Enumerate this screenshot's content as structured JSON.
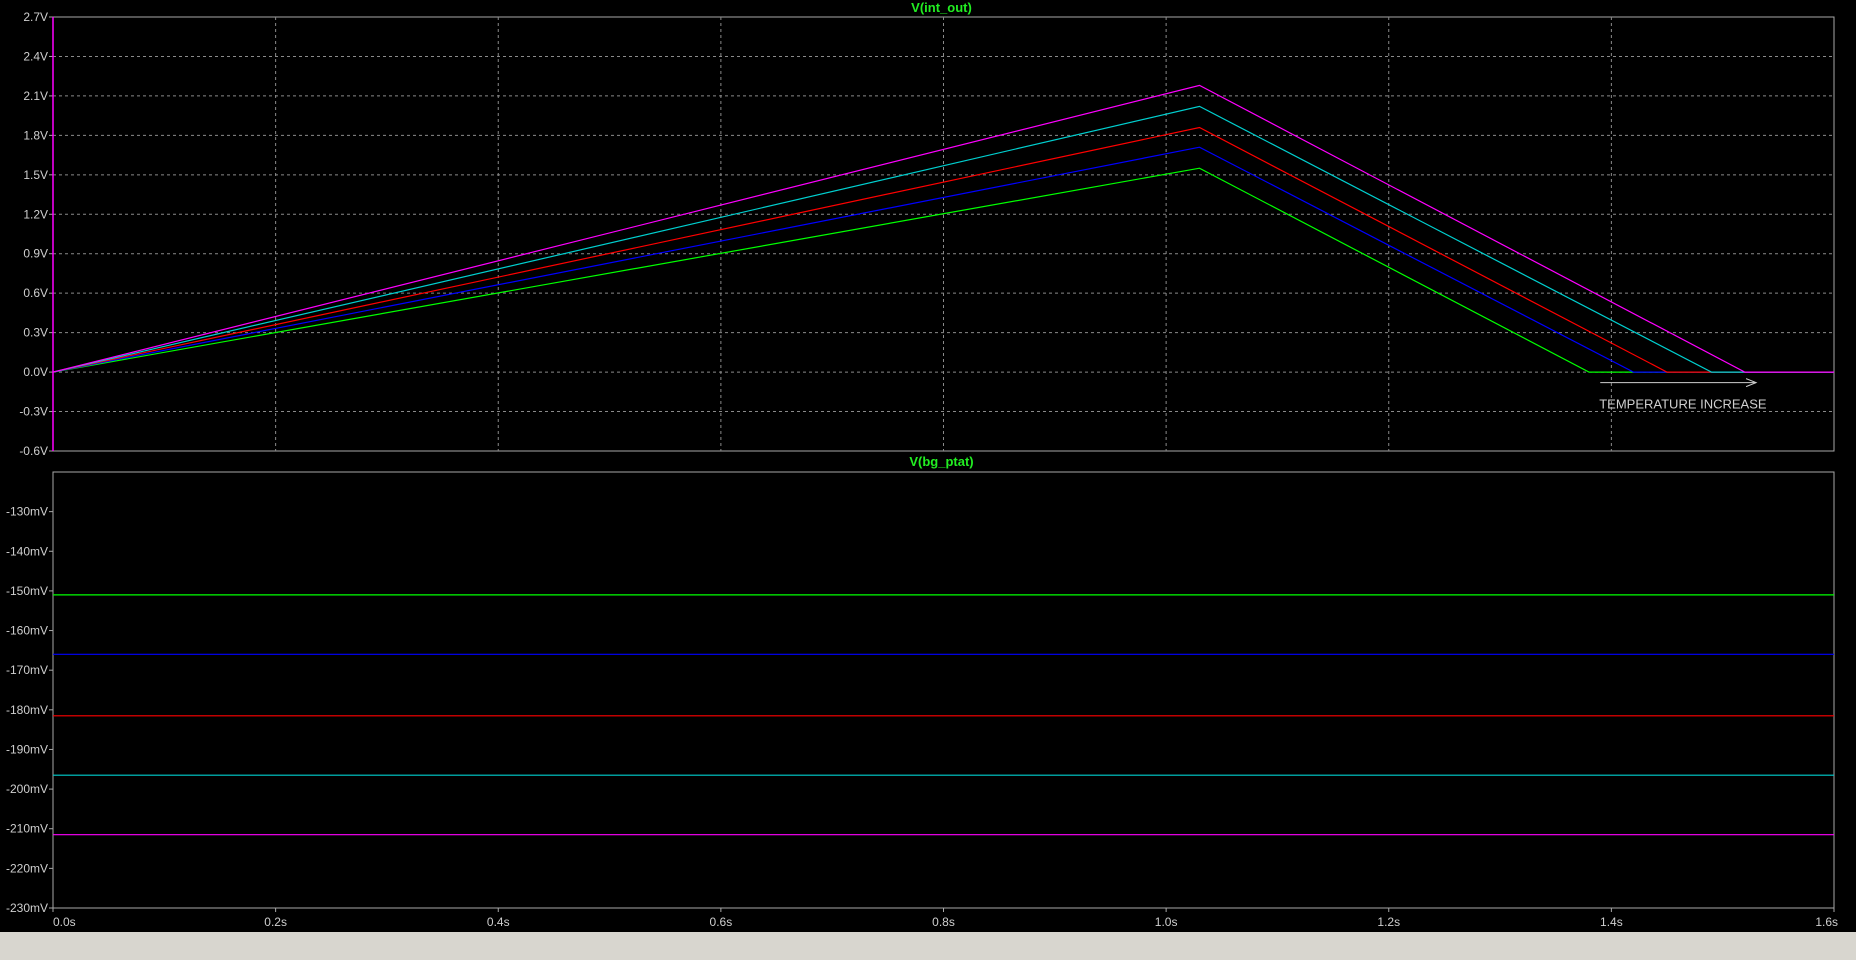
{
  "chart_data": [
    {
      "type": "line",
      "title": "V(int_out)",
      "xlabel": "",
      "ylabel": "",
      "xlim": [
        0,
        1.6
      ],
      "ylim": [
        -0.6,
        2.7
      ],
      "x_ticks": [
        "0.0s",
        "0.2s",
        "0.4s",
        "0.6s",
        "0.8s",
        "1.0s",
        "1.2s",
        "1.4s",
        "1.6s"
      ],
      "y_ticks": [
        "2.7V",
        "2.4V",
        "2.1V",
        "1.8V",
        "1.5V",
        "1.2V",
        "0.9V",
        "0.6V",
        "0.3V",
        "0.0V",
        "-0.3V",
        "-0.6V"
      ],
      "grid": true,
      "series": [
        {
          "color": "#00ff00",
          "x": [
            0,
            1.03,
            1.38,
            1.6
          ],
          "y": [
            0,
            1.55,
            0,
            0
          ]
        },
        {
          "color": "#0000ff",
          "x": [
            0,
            1.03,
            1.42,
            1.6
          ],
          "y": [
            0,
            1.71,
            0,
            0
          ]
        },
        {
          "color": "#ff0000",
          "x": [
            0,
            1.03,
            1.45,
            1.6
          ],
          "y": [
            0,
            1.86,
            0,
            0
          ]
        },
        {
          "color": "#00cfcf",
          "x": [
            0,
            1.03,
            1.49,
            1.6
          ],
          "y": [
            0,
            2.02,
            0,
            0
          ]
        },
        {
          "color": "#ff00ff",
          "x": [
            0,
            1.03,
            1.52,
            1.6
          ],
          "y": [
            0,
            2.18,
            0,
            0
          ]
        }
      ],
      "annotations": [
        {
          "text": "TEMPERATURE INCREASE",
          "arrow": {
            "x_from": 1.39,
            "x_to": 1.53,
            "y": -0.08
          },
          "x": 1.39,
          "y": -0.24
        }
      ]
    },
    {
      "type": "line",
      "title": "V(bg_ptat)",
      "xlabel": "",
      "ylabel": "",
      "xlim": [
        0,
        1.6
      ],
      "ylim": [
        -230,
        -120
      ],
      "x_ticks": [
        "0.0s",
        "0.2s",
        "0.4s",
        "0.6s",
        "0.8s",
        "1.0s",
        "1.2s",
        "1.4s",
        "1.6s"
      ],
      "y_ticks": [
        "-130mV",
        "-140mV",
        "-150mV",
        "-160mV",
        "-170mV",
        "-180mV",
        "-190mV",
        "-200mV",
        "-210mV",
        "-220mV",
        "-230mV"
      ],
      "grid": false,
      "series": [
        {
          "color": "#00ff00",
          "x": [
            0,
            1.6
          ],
          "y": [
            -151,
            -151
          ]
        },
        {
          "color": "#0000ff",
          "x": [
            0,
            1.6
          ],
          "y": [
            -166,
            -166
          ]
        },
        {
          "color": "#ff0000",
          "x": [
            0,
            1.6
          ],
          "y": [
            -181.5,
            -181.5
          ]
        },
        {
          "color": "#00cfcf",
          "x": [
            0,
            1.6
          ],
          "y": [
            -196.5,
            -196.5
          ]
        },
        {
          "color": "#ff00ff",
          "x": [
            0,
            1.6
          ],
          "y": [
            -211.5,
            -211.5
          ]
        }
      ]
    }
  ]
}
